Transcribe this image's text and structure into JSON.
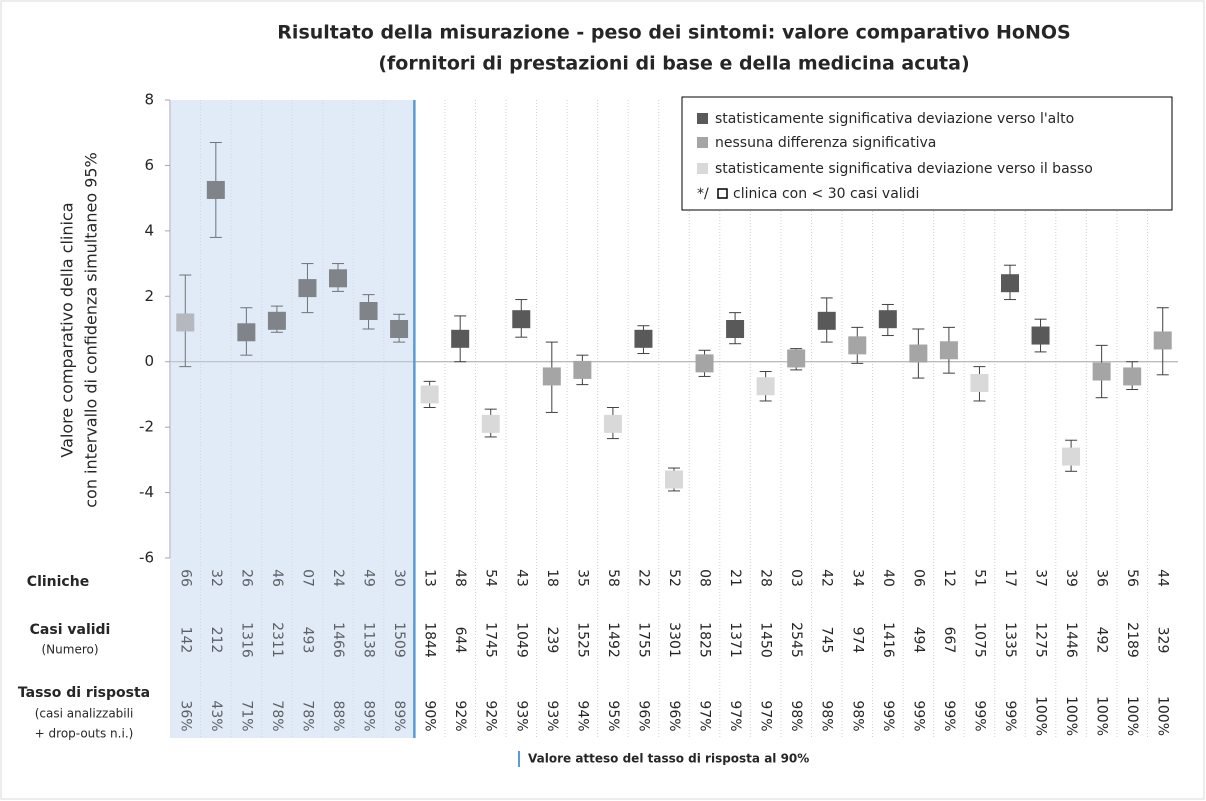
{
  "chart_data": {
    "type": "errorbar",
    "title": [
      "Risultato della misurazione - peso dei sintomi: valore comparativo HoNOS",
      "(fornitori di prestazioni di base e della medicina acuta)"
    ],
    "y_label": [
      "Valore comparativo della clinica",
      "con intervallo di confidenza simultaneo 95%"
    ],
    "categories": [
      "66",
      "32",
      "26",
      "46",
      "07",
      "24",
      "49",
      "30",
      "13",
      "48",
      "54",
      "43",
      "18",
      "35",
      "58",
      "22",
      "52",
      "08",
      "21",
      "28",
      "03",
      "42",
      "34",
      "40",
      "06",
      "12",
      "51",
      "17",
      "37",
      "39",
      "36",
      "56",
      "44"
    ],
    "row_labels": {
      "clinics": "Cliniche",
      "cases": [
        "Casi validi",
        "(Numero)"
      ],
      "rate": [
        "Tasso di risposta",
        "(casi analizzabili",
        "+ drop-outs n.i.)"
      ]
    },
    "cases": [
      142,
      212,
      1316,
      2311,
      493,
      1466,
      1138,
      1509,
      1844,
      644,
      1745,
      1049,
      239,
      1525,
      1492,
      1755,
      3301,
      1825,
      1371,
      1450,
      2545,
      745,
      974,
      1416,
      494,
      667,
      1075,
      1335,
      1275,
      1446,
      492,
      2189,
      329
    ],
    "response_rate": {
      "values": [
        36,
        43,
        71,
        78,
        78,
        88,
        89,
        89,
        90,
        92,
        92,
        93,
        93,
        94,
        95,
        96,
        96,
        97,
        97,
        97,
        98,
        98,
        98,
        99,
        99,
        99,
        99,
        99,
        100,
        100,
        100,
        100,
        100
      ],
      "value_labels": [
        "36%",
        "43%",
        "71%",
        "78%",
        "78%",
        "88%",
        "89%",
        "89%",
        "90%",
        "92%",
        "92%",
        "93%",
        "93%",
        "94%",
        "95%",
        "96%",
        "96%",
        "97%",
        "97%",
        "97%",
        "98%",
        "98%",
        "98%",
        "99%",
        "99%",
        "99%",
        "99%",
        "99%",
        "100%",
        "100%",
        "100%",
        "100%",
        "100%"
      ]
    },
    "reference_rate": 90,
    "reference_label": "Valore atteso del tasso di risposta al 90%",
    "reference_color": "#5b9bd5",
    "series": [
      {
        "name": "statisticamente significativa deviazione verso l'alto",
        "color": "#595959",
        "values": [
          null,
          5.25,
          0.9,
          1.25,
          2.25,
          2.55,
          1.55,
          1.0,
          null,
          0.7,
          null,
          1.3,
          null,
          null,
          null,
          0.7,
          null,
          null,
          1.0,
          null,
          null,
          1.25,
          null,
          1.3,
          null,
          null,
          null,
          2.4,
          0.8,
          null,
          null,
          null,
          null
        ],
        "ci_low": [
          null,
          3.8,
          0.2,
          0.9,
          1.5,
          2.15,
          1.0,
          0.6,
          null,
          0.0,
          null,
          0.75,
          null,
          null,
          null,
          0.25,
          null,
          null,
          0.55,
          null,
          null,
          0.6,
          null,
          0.8,
          null,
          null,
          null,
          1.9,
          0.3,
          null,
          null,
          null,
          null
        ],
        "ci_high": [
          null,
          6.7,
          1.65,
          1.7,
          3.0,
          3.0,
          2.05,
          1.45,
          null,
          1.4,
          null,
          1.9,
          null,
          null,
          null,
          1.1,
          null,
          null,
          1.5,
          null,
          null,
          1.95,
          null,
          1.75,
          null,
          null,
          null,
          2.95,
          1.3,
          null,
          null,
          null,
          null
        ]
      },
      {
        "name": "nessuna differenza significativa",
        "color": "#a5a5a5",
        "values": [
          1.2,
          null,
          null,
          null,
          null,
          null,
          null,
          null,
          null,
          null,
          null,
          null,
          -0.45,
          -0.25,
          null,
          null,
          null,
          -0.05,
          null,
          null,
          0.1,
          null,
          0.5,
          null,
          0.25,
          0.35,
          null,
          null,
          null,
          null,
          -0.3,
          -0.45,
          0.65
        ],
        "ci_low": [
          -0.15,
          null,
          null,
          null,
          null,
          null,
          null,
          null,
          null,
          null,
          null,
          null,
          -1.55,
          -0.7,
          null,
          null,
          null,
          -0.45,
          null,
          null,
          -0.25,
          null,
          -0.05,
          null,
          -0.5,
          -0.35,
          null,
          null,
          null,
          null,
          -1.1,
          -0.85,
          -0.4
        ],
        "ci_high": [
          2.65,
          null,
          null,
          null,
          null,
          null,
          null,
          null,
          null,
          null,
          null,
          null,
          0.6,
          0.2,
          null,
          null,
          null,
          0.35,
          null,
          null,
          0.4,
          null,
          1.05,
          null,
          1.0,
          1.05,
          null,
          null,
          null,
          null,
          0.5,
          0.0,
          1.65
        ]
      },
      {
        "name": "statisticamente significativa deviazione verso il basso",
        "color": "#d9d9d9",
        "values": [
          null,
          null,
          null,
          null,
          null,
          null,
          null,
          null,
          -1.0,
          null,
          -1.9,
          null,
          null,
          null,
          -1.9,
          null,
          -3.6,
          null,
          null,
          -0.75,
          null,
          null,
          null,
          null,
          null,
          null,
          -0.65,
          null,
          null,
          -2.9,
          null,
          null,
          null
        ],
        "ci_low": [
          null,
          null,
          null,
          null,
          null,
          null,
          null,
          null,
          -1.4,
          null,
          -2.3,
          null,
          null,
          null,
          -2.35,
          null,
          -3.95,
          null,
          null,
          -1.2,
          null,
          null,
          null,
          null,
          null,
          null,
          -1.2,
          null,
          null,
          -3.35,
          null,
          null,
          null
        ],
        "ci_high": [
          null,
          null,
          null,
          null,
          null,
          null,
          null,
          null,
          -0.6,
          null,
          -1.45,
          null,
          null,
          null,
          -1.4,
          null,
          -3.25,
          null,
          null,
          -0.3,
          null,
          null,
          null,
          null,
          null,
          null,
          -0.15,
          null,
          null,
          -2.4,
          null,
          null,
          null
        ]
      }
    ],
    "legend_note": {
      "prefix": "*/",
      "text": "clinica con < 30 casi validi"
    },
    "legend_position": "upper right",
    "ylim": [
      -6,
      8
    ],
    "yticks": [
      -6,
      -4,
      -2,
      0,
      2,
      4,
      6,
      8
    ]
  }
}
